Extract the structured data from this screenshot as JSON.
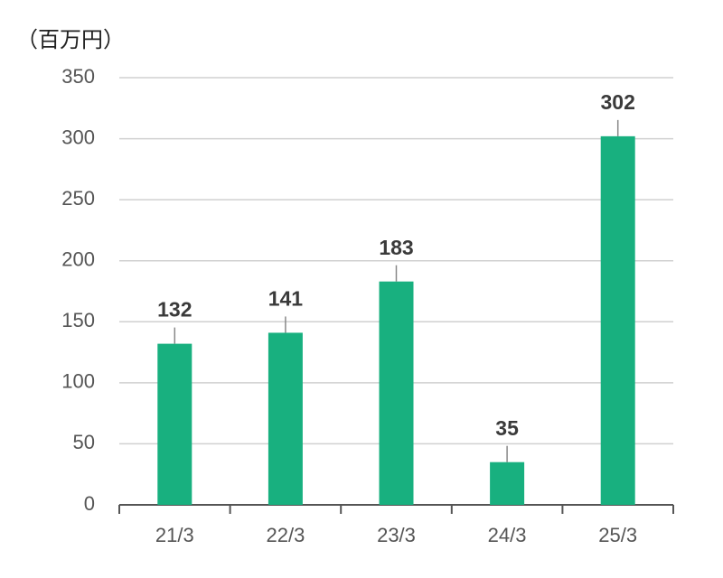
{
  "chart_data": {
    "type": "bar",
    "title": "（百万円）",
    "categories": [
      "21/3",
      "22/3",
      "23/3",
      "24/3",
      "25/3"
    ],
    "values": [
      132,
      141,
      183,
      35,
      302
    ],
    "color": "#18b07f",
    "ylim": [
      0,
      350
    ],
    "yticks": [
      0,
      50,
      100,
      150,
      200,
      250,
      300,
      350
    ],
    "grid": true
  }
}
